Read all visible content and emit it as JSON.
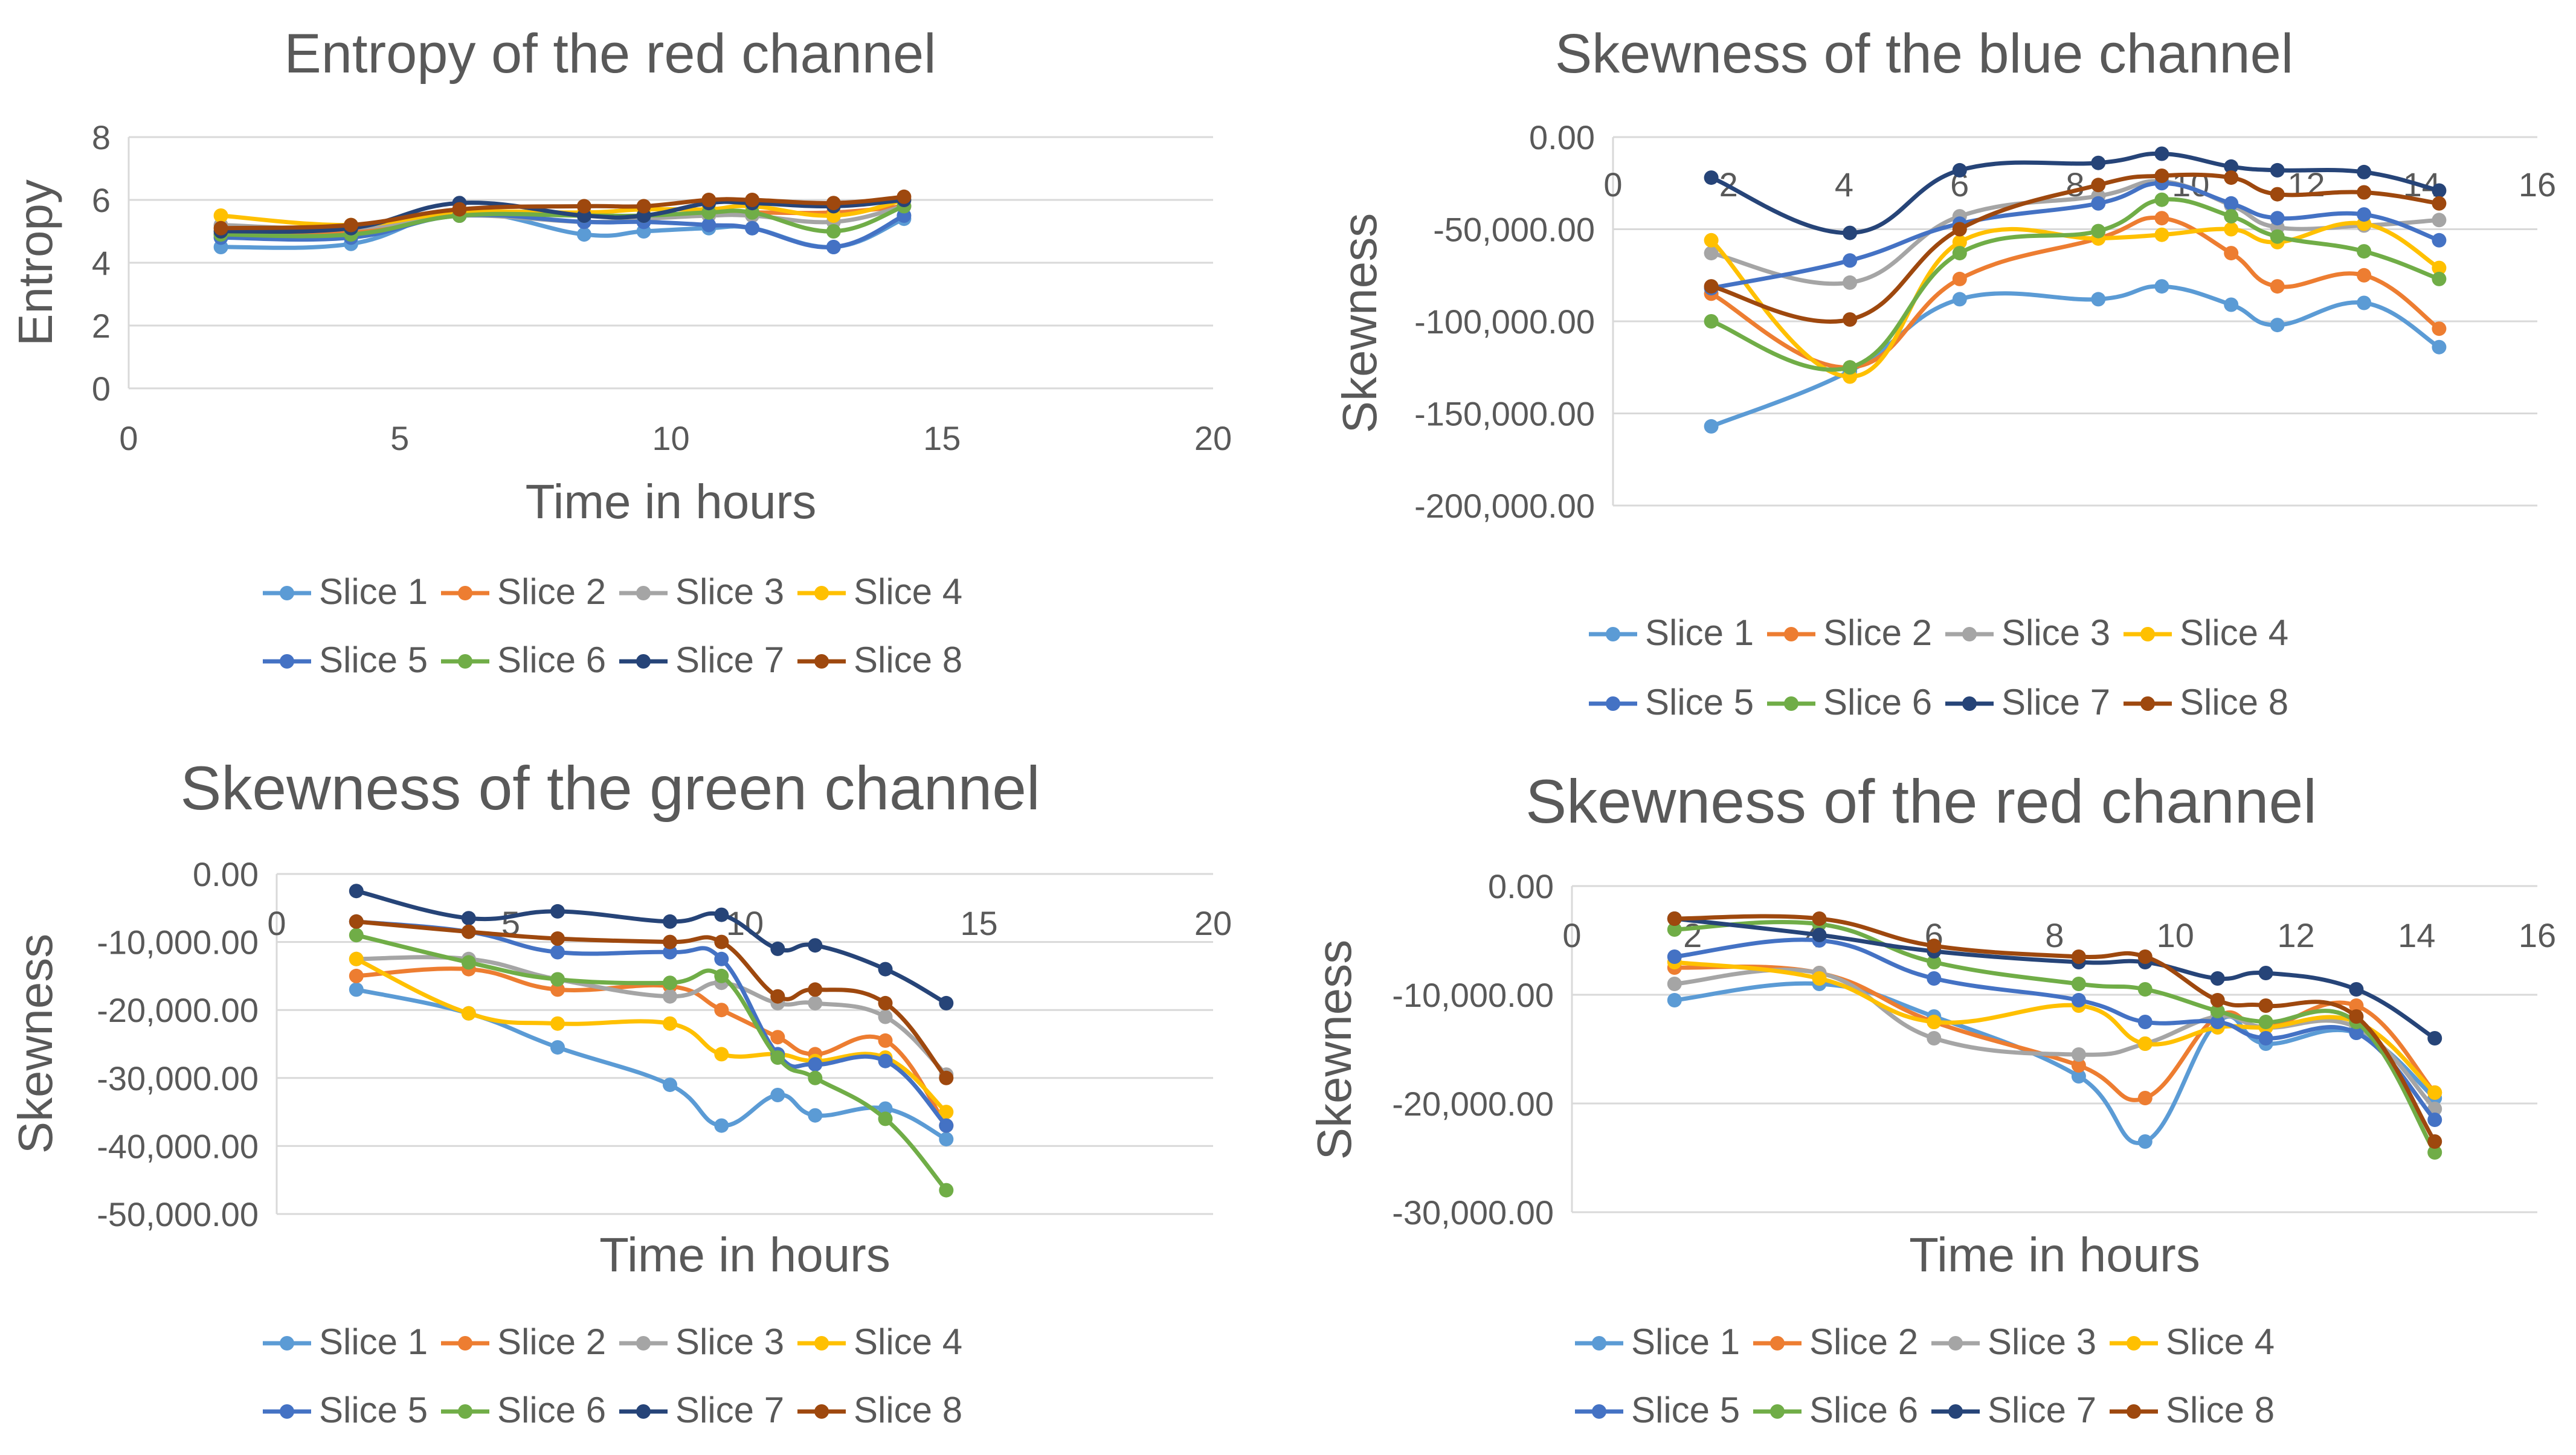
{
  "chart_data": [
    {
      "type": "line",
      "title": "Entropy of the red channel",
      "xlabel": "Time in hours",
      "ylabel": "Entropy",
      "xlim": [
        0,
        20
      ],
      "ylim": [
        0,
        8
      ],
      "x_ticks": [
        "0",
        "5",
        "10",
        "15",
        "20"
      ],
      "y_ticks": [
        "0",
        "2",
        "4",
        "6",
        "8"
      ],
      "x": [
        1.7,
        4.1,
        6.1,
        8.4,
        9.5,
        10.7,
        11.5,
        13.0,
        14.3
      ],
      "series": [
        {
          "name": "Slice 1",
          "values": [
            4.5,
            4.6,
            5.6,
            4.9,
            5.0,
            5.1,
            5.1,
            4.5,
            5.4
          ]
        },
        {
          "name": "Slice 2",
          "values": [
            4.9,
            5.0,
            5.5,
            5.5,
            5.4,
            5.6,
            5.6,
            5.6,
            5.8
          ]
        },
        {
          "name": "Slice 3",
          "values": [
            5.2,
            5.1,
            5.5,
            5.3,
            5.4,
            5.5,
            5.5,
            5.3,
            5.8
          ]
        },
        {
          "name": "Slice 4",
          "values": [
            5.5,
            5.2,
            5.6,
            5.6,
            5.7,
            5.7,
            5.8,
            5.5,
            6.0
          ]
        },
        {
          "name": "Slice 5",
          "values": [
            4.8,
            4.8,
            5.5,
            5.3,
            5.3,
            5.2,
            5.1,
            4.5,
            5.5
          ]
        },
        {
          "name": "Slice 6",
          "values": [
            4.9,
            4.9,
            5.5,
            5.5,
            5.5,
            5.6,
            5.6,
            5.0,
            5.8
          ]
        },
        {
          "name": "Slice 7",
          "values": [
            5.0,
            5.1,
            5.9,
            5.5,
            5.5,
            5.9,
            5.9,
            5.8,
            6.0
          ]
        },
        {
          "name": "Slice 8",
          "values": [
            5.1,
            5.2,
            5.7,
            5.8,
            5.8,
            6.0,
            6.0,
            5.9,
            6.1
          ]
        }
      ]
    },
    {
      "type": "line",
      "title": "Skewness of the blue channel",
      "xlabel": "",
      "ylabel": "Skewness",
      "xlim": [
        0,
        16
      ],
      "ylim": [
        -200000,
        0
      ],
      "x_ticks": [
        "0",
        "2",
        "4",
        "6",
        "8",
        "10",
        "12",
        "14",
        "16"
      ],
      "y_ticks": [
        "0.00",
        "-50,000.00",
        "-100,000.00",
        "-150,000.00",
        "-200,000.00"
      ],
      "x": [
        1.7,
        4.1,
        6.0,
        8.4,
        9.5,
        10.7,
        11.5,
        13.0,
        14.3
      ],
      "series": [
        {
          "name": "Slice 1",
          "values": [
            -157000,
            -127000,
            -88000,
            -88000,
            -81000,
            -91000,
            -102000,
            -90000,
            -114000
          ]
        },
        {
          "name": "Slice 2",
          "values": [
            -85000,
            -125000,
            -77000,
            -55000,
            -44000,
            -63000,
            -81000,
            -75000,
            -104000
          ]
        },
        {
          "name": "Slice 3",
          "values": [
            -63000,
            -79000,
            -43000,
            -32000,
            -24000,
            -37000,
            -49000,
            -48000,
            -45000
          ]
        },
        {
          "name": "Slice 4",
          "values": [
            -56000,
            -130000,
            -57000,
            -55000,
            -53000,
            -50000,
            -57000,
            -47000,
            -71000
          ]
        },
        {
          "name": "Slice 5",
          "values": [
            -82000,
            -67000,
            -47000,
            -36000,
            -25000,
            -36000,
            -44000,
            -42000,
            -56000
          ]
        },
        {
          "name": "Slice 6",
          "values": [
            -100000,
            -125000,
            -63000,
            -51000,
            -34000,
            -43000,
            -54000,
            -62000,
            -77000
          ]
        },
        {
          "name": "Slice 7",
          "values": [
            -22000,
            -52000,
            -18000,
            -14000,
            -9000,
            -16000,
            -18000,
            -19000,
            -29000
          ]
        },
        {
          "name": "Slice 8",
          "values": [
            -81000,
            -99000,
            -50000,
            -26000,
            -21000,
            -22000,
            -31000,
            -30000,
            -36000
          ]
        }
      ]
    },
    {
      "type": "line",
      "title": "Skewness of the green channel",
      "xlabel": "Time in hours",
      "ylabel": "Skewness",
      "xlim": [
        0,
        20
      ],
      "ylim": [
        -50000,
        0
      ],
      "x_ticks": [
        "0",
        "5",
        "10",
        "15",
        "20"
      ],
      "y_ticks": [
        "0.00",
        "-10,000.00",
        "-20,000.00",
        "-30,000.00",
        "-40,000.00",
        "-50,000.00"
      ],
      "x": [
        1.7,
        4.1,
        6.0,
        8.4,
        9.5,
        10.7,
        11.5,
        13.0,
        14.3
      ],
      "series": [
        {
          "name": "Slice 1",
          "values": [
            -17000,
            -20500,
            -25500,
            -31000,
            -37000,
            -32500,
            -35500,
            -34500,
            -39000
          ]
        },
        {
          "name": "Slice 2",
          "values": [
            -15000,
            -14000,
            -17000,
            -16500,
            -20000,
            -24000,
            -26500,
            -24500,
            -37000
          ]
        },
        {
          "name": "Slice 3",
          "values": [
            -12500,
            -12500,
            -15500,
            -18000,
            -16000,
            -19000,
            -19000,
            -21000,
            -29500
          ]
        },
        {
          "name": "Slice 4",
          "values": [
            -12500,
            -20500,
            -22000,
            -22000,
            -26500,
            -26500,
            -27500,
            -27000,
            -35000
          ]
        },
        {
          "name": "Slice 5",
          "values": [
            -7000,
            -8500,
            -11500,
            -11500,
            -12500,
            -26500,
            -28000,
            -27500,
            -37000
          ]
        },
        {
          "name": "Slice 6",
          "values": [
            -9000,
            -13000,
            -15500,
            -16000,
            -15000,
            -27000,
            -30000,
            -36000,
            -46500
          ]
        },
        {
          "name": "Slice 7",
          "values": [
            -2500,
            -6500,
            -5500,
            -7000,
            -6000,
            -11000,
            -10500,
            -14000,
            -19000
          ]
        },
        {
          "name": "Slice 8",
          "values": [
            -7000,
            -8500,
            -9500,
            -10000,
            -10000,
            -18000,
            -17000,
            -19000,
            -30000
          ]
        }
      ]
    },
    {
      "type": "line",
      "title": "Skewness of the red channel",
      "xlabel": "Time in hours",
      "ylabel": "Skewness",
      "xlim": [
        0,
        16
      ],
      "ylim": [
        -30000,
        0
      ],
      "x_ticks": [
        "0",
        "2",
        "4",
        "6",
        "8",
        "10",
        "12",
        "14",
        "16"
      ],
      "y_ticks": [
        "0.00",
        "-10,000.00",
        "-20,000.00",
        "-30,000.00"
      ],
      "x": [
        1.7,
        4.1,
        6.0,
        8.4,
        9.5,
        10.7,
        11.5,
        13.0,
        14.3
      ],
      "series": [
        {
          "name": "Slice 1",
          "values": [
            -10500,
            -9000,
            -12000,
            -17500,
            -23500,
            -12500,
            -14500,
            -13500,
            -19500
          ]
        },
        {
          "name": "Slice 2",
          "values": [
            -7500,
            -8000,
            -12500,
            -16500,
            -19500,
            -12000,
            -13000,
            -11000,
            -19000
          ]
        },
        {
          "name": "Slice 3",
          "values": [
            -9000,
            -8000,
            -14000,
            -15500,
            -14500,
            -12000,
            -13000,
            -13000,
            -20500
          ]
        },
        {
          "name": "Slice 4",
          "values": [
            -7000,
            -8500,
            -12500,
            -11000,
            -14500,
            -13000,
            -13000,
            -12500,
            -19000
          ]
        },
        {
          "name": "Slice 5",
          "values": [
            -6500,
            -5000,
            -8500,
            -10500,
            -12500,
            -12500,
            -14000,
            -13500,
            -21500
          ]
        },
        {
          "name": "Slice 6",
          "values": [
            -4000,
            -3500,
            -7000,
            -9000,
            -9500,
            -11500,
            -12500,
            -12500,
            -24500
          ]
        },
        {
          "name": "Slice 7",
          "values": [
            -3000,
            -4500,
            -6000,
            -7000,
            -7000,
            -8500,
            -8000,
            -9500,
            -14000
          ]
        },
        {
          "name": "Slice 8",
          "values": [
            -3000,
            -3000,
            -5500,
            -6500,
            -6500,
            -10500,
            -11000,
            -12000,
            -23500
          ]
        }
      ]
    }
  ],
  "colors": [
    "#5B9BD5",
    "#ED7D31",
    "#A5A5A5",
    "#FFC000",
    "#4472C4",
    "#70AD47",
    "#264478",
    "#9E480E"
  ]
}
